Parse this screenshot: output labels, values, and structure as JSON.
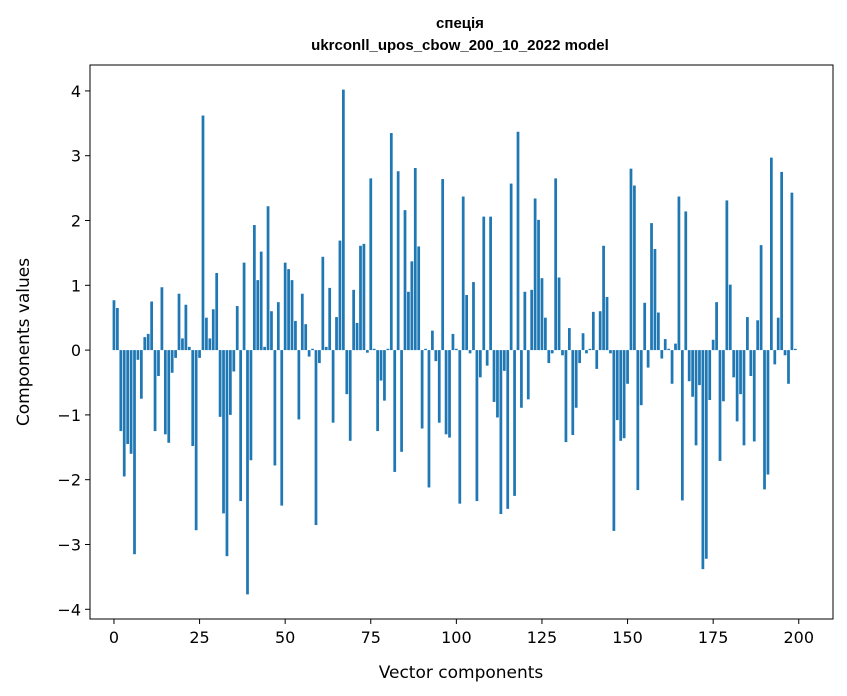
{
  "chart_data": {
    "type": "bar",
    "title": "спеція",
    "subtitle": "ukrconll_upos_cbow_200_10_2022 model",
    "xlabel": "Vector components",
    "ylabel": "Components values",
    "xlim": [
      -7,
      210
    ],
    "ylim": [
      -4.15,
      4.4
    ],
    "xticks": [
      0,
      25,
      50,
      75,
      100,
      125,
      150,
      175,
      200
    ],
    "xtick_labels": [
      "0",
      "25",
      "50",
      "75",
      "100",
      "125",
      "150",
      "175",
      "200"
    ],
    "yticks": [
      -4,
      -3,
      -2,
      -1,
      0,
      1,
      2,
      3,
      4
    ],
    "ytick_labels": [
      "−4",
      "−3",
      "−2",
      "−1",
      "0",
      "1",
      "2",
      "3",
      "4"
    ],
    "bar_color": "#1f77b4",
    "grid": false,
    "x": [
      0,
      1,
      2,
      3,
      4,
      5,
      6,
      7,
      8,
      9,
      10,
      11,
      12,
      13,
      14,
      15,
      16,
      17,
      18,
      19,
      20,
      21,
      22,
      23,
      24,
      25,
      26,
      27,
      28,
      29,
      30,
      31,
      32,
      33,
      34,
      35,
      36,
      37,
      38,
      39,
      40,
      41,
      42,
      43,
      44,
      45,
      46,
      47,
      48,
      49,
      50,
      51,
      52,
      53,
      54,
      55,
      56,
      57,
      58,
      59,
      60,
      61,
      62,
      63,
      64,
      65,
      66,
      67,
      68,
      69,
      70,
      71,
      72,
      73,
      74,
      75,
      76,
      77,
      78,
      79,
      80,
      81,
      82,
      83,
      84,
      85,
      86,
      87,
      88,
      89,
      90,
      91,
      92,
      93,
      94,
      95,
      96,
      97,
      98,
      99,
      100,
      101,
      102,
      103,
      104,
      105,
      106,
      107,
      108,
      109,
      110,
      111,
      112,
      113,
      114,
      115,
      116,
      117,
      118,
      119,
      120,
      121,
      122,
      123,
      124,
      125,
      126,
      127,
      128,
      129,
      130,
      131,
      132,
      133,
      134,
      135,
      136,
      137,
      138,
      139,
      140,
      141,
      142,
      143,
      144,
      145,
      146,
      147,
      148,
      149,
      150,
      151,
      152,
      153,
      154,
      155,
      156,
      157,
      158,
      159,
      160,
      161,
      162,
      163,
      164,
      165,
      166,
      167,
      168,
      169,
      170,
      171,
      172,
      173,
      174,
      175,
      176,
      177,
      178,
      179,
      180,
      181,
      182,
      183,
      184,
      185,
      186,
      187,
      188,
      189,
      190,
      191,
      192,
      193,
      194,
      195,
      196,
      197,
      198,
      199
    ],
    "values": [
      0.77,
      0.65,
      -1.25,
      -1.95,
      -1.45,
      -1.6,
      -3.15,
      -0.15,
      -0.75,
      0.2,
      0.25,
      0.75,
      -1.25,
      -0.4,
      0.97,
      -1.3,
      -1.43,
      -0.35,
      -0.12,
      0.87,
      0.18,
      0.7,
      0.05,
      -1.48,
      -2.78,
      -0.12,
      3.62,
      0.5,
      0.18,
      0.63,
      1.19,
      -1.03,
      -2.52,
      -3.18,
      -1.0,
      -0.33,
      0.68,
      -2.33,
      1.35,
      -3.77,
      -1.7,
      1.93,
      1.08,
      1.52,
      0.05,
      2.22,
      0.6,
      -1.78,
      0.74,
      -2.4,
      1.35,
      1.25,
      1.08,
      0.45,
      -1.07,
      0.87,
      0.4,
      -0.1,
      0.02,
      -2.7,
      -0.2,
      1.44,
      0.05,
      0.96,
      -1.12,
      0.51,
      1.69,
      4.02,
      -0.68,
      -1.4,
      0.93,
      0.42,
      1.61,
      1.64,
      -0.04,
      2.65,
      0.02,
      -1.25,
      -0.47,
      -0.78,
      0.02,
      3.35,
      -1.88,
      2.76,
      -1.57,
      2.16,
      0.9,
      1.37,
      2.81,
      1.6,
      -1.21,
      0.02,
      -2.12,
      0.3,
      -0.17,
      -1.12,
      2.64,
      -1.3,
      -1.35,
      0.25,
      0.02,
      -2.37,
      2.37,
      0.85,
      -0.05,
      1.05,
      -2.33,
      -0.42,
      2.06,
      -0.24,
      2.06,
      -0.8,
      -1.04,
      -2.53,
      -0.32,
      -2.45,
      2.57,
      -2.25,
      3.37,
      -0.89,
      0.9,
      -0.76,
      0.93,
      2.34,
      2.01,
      1.11,
      0.5,
      -0.2,
      -0.05,
      2.65,
      1.12,
      -0.08,
      -1.42,
      0.34,
      -1.31,
      -0.89,
      -0.2,
      0.26,
      -0.05,
      0.02,
      0.59,
      -0.29,
      0.6,
      1.61,
      0.82,
      -0.05,
      -2.79,
      -1.08,
      -1.4,
      -1.36,
      -0.52,
      2.8,
      2.54,
      -2.16,
      -0.85,
      0.73,
      -0.27,
      1.96,
      1.56,
      0.58,
      -0.13,
      0.17,
      0.02,
      -0.52,
      0.1,
      2.37,
      -2.32,
      2.14,
      -0.48,
      -0.72,
      -1.47,
      -0.54,
      -3.38,
      -3.22,
      -0.77,
      0.16,
      0.74,
      -1.71,
      -0.79,
      2.31,
      1.01,
      -0.42,
      -1.1,
      -0.68,
      -1.47,
      0.51,
      -0.4,
      -1.41,
      0.46,
      1.62,
      -2.15,
      -1.92,
      2.97,
      -0.22,
      0.5,
      2.75,
      -0.08,
      -0.52,
      2.43,
      0.02
    ]
  }
}
